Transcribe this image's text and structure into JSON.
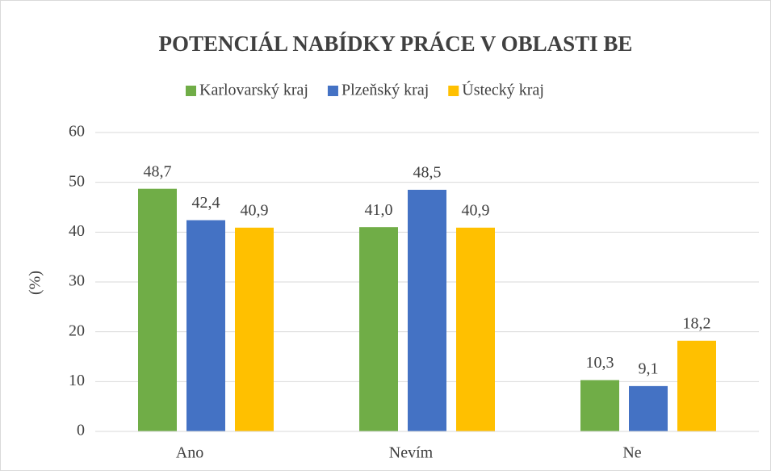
{
  "chart_data": {
    "type": "bar",
    "title": "POTENCIÁL NABÍDKY PRÁCE V OBLASTI BE",
    "y_label": "(%)",
    "categories": [
      "Ano",
      "Nevím",
      "Ne"
    ],
    "series": [
      {
        "name": "Karlovarský kraj",
        "color": "#70ad47",
        "values": [
          48.7,
          41.0,
          10.3
        ],
        "value_labels": [
          "48,7",
          "41,0",
          "10,3"
        ]
      },
      {
        "name": "Plzeňský kraj",
        "color": "#4472c4",
        "values": [
          42.4,
          48.5,
          9.1
        ],
        "value_labels": [
          "42,4",
          "48,5",
          "9,1"
        ]
      },
      {
        "name": "Ústecký kraj",
        "color": "#ffc000",
        "values": [
          40.9,
          40.9,
          18.2
        ],
        "value_labels": [
          "40,9",
          "40,9",
          "18,2"
        ]
      }
    ],
    "ylim": [
      0,
      60
    ],
    "yticks": [
      0,
      10,
      20,
      30,
      40,
      50,
      60
    ],
    "grid": true,
    "legend": "top"
  }
}
